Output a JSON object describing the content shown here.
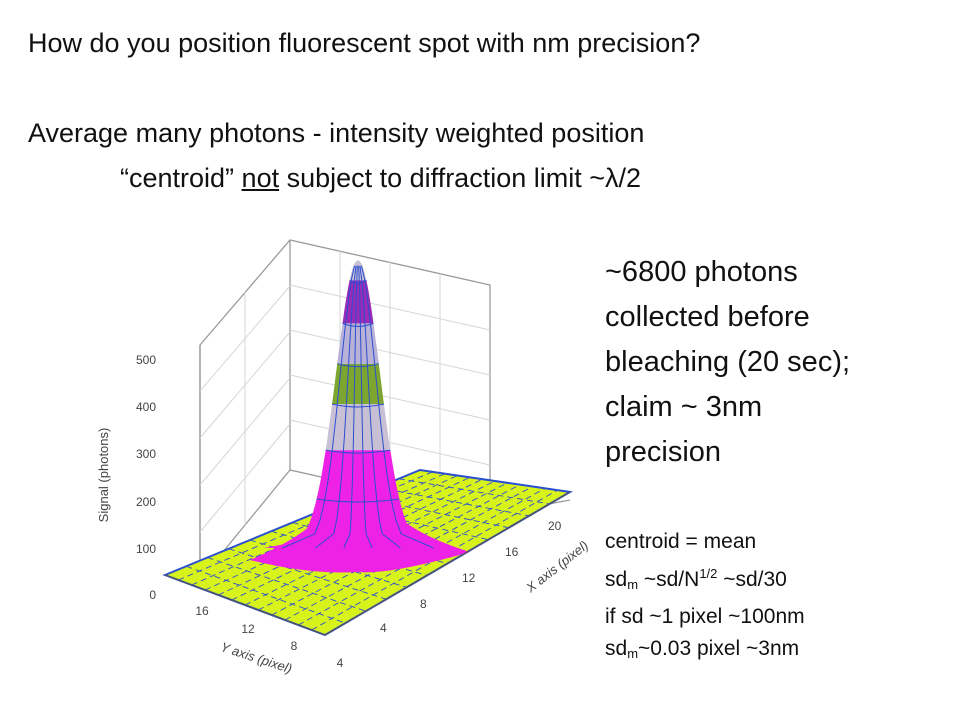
{
  "heading": {
    "question": "How  do you position fluorescent spot with nm precision?",
    "average": "Average many photons - intensity weighted position",
    "centroid_open": "“centroid” ",
    "centroid_not": "not",
    "centroid_rest": " subject to diffraction limit ~λ/2"
  },
  "facts": {
    "line1": "~6800 photons",
    "line2": "collected before",
    "line3": "bleaching (20 sec);",
    "line4": "claim ~ 3nm",
    "line5": "precision"
  },
  "formulas": {
    "f1": "centroid = mean",
    "f2_a": "sd",
    "f2_sub": "m",
    "f2_b": " ~sd/N",
    "f2_sup": "1/2",
    "f2_c": " ~sd/30",
    "f3": "if sd ~1 pixel ~100nm",
    "f4_a": "sd",
    "f4_sub": "m",
    "f4_b": "~0.03 pixel ~3nm"
  },
  "plot": {
    "z_label": "Signal (photons)",
    "x_label": "X axis (pixel)",
    "y_label": "Y axis (pixel)",
    "z_ticks": [
      "0",
      "100",
      "200",
      "300",
      "400",
      "500"
    ],
    "x_ticks": [
      "4",
      "8",
      "12",
      "16",
      "20"
    ],
    "y_ticks": [
      "16",
      "12",
      "8",
      "4"
    ],
    "colors": {
      "floor": "#d8f21c",
      "grid": "#2a4fd0",
      "peak_magenta": "#ee22e6",
      "peak_grey": "#c9c0d6",
      "peak_green": "#7ca630",
      "peak_purple": "#9a2ab8",
      "peak_lavender": "#b9b2d8"
    }
  }
}
